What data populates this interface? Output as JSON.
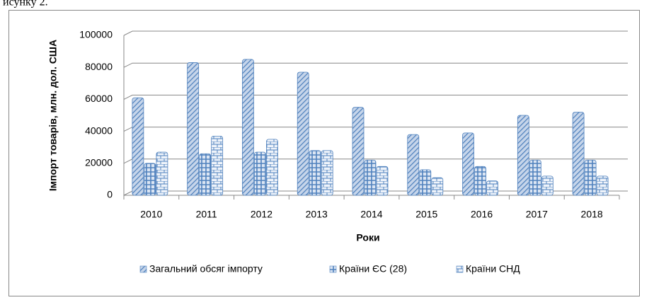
{
  "page_text": "исунку 2.",
  "chart_data": {
    "type": "bar",
    "y_axis_label": "Імпорт товарів, млн. дол. США",
    "x_axis_label": "Роки",
    "categories": [
      "2010",
      "2011",
      "2012",
      "2013",
      "2014",
      "2015",
      "2016",
      "2017",
      "2018"
    ],
    "series": [
      {
        "name": "Загальний обсяг імпорту",
        "color": "#4f81bd",
        "values": [
          61000,
          83000,
          85000,
          77000,
          55000,
          38000,
          39000,
          50000,
          52000
        ]
      },
      {
        "name": "Країни ЄС (28)",
        "color": "#4f81bd",
        "values": [
          20000,
          26000,
          27000,
          28000,
          22000,
          16000,
          18000,
          22000,
          22000
        ]
      },
      {
        "name": "Країни СНД",
        "color": "#4f81bd",
        "values": [
          27000,
          37000,
          35000,
          28000,
          18000,
          11000,
          9000,
          12000,
          12000
        ]
      }
    ],
    "ylim": [
      0,
      100000
    ],
    "yticks": [
      0,
      20000,
      40000,
      60000,
      80000,
      100000
    ],
    "grid": true,
    "legend": "bottom"
  }
}
